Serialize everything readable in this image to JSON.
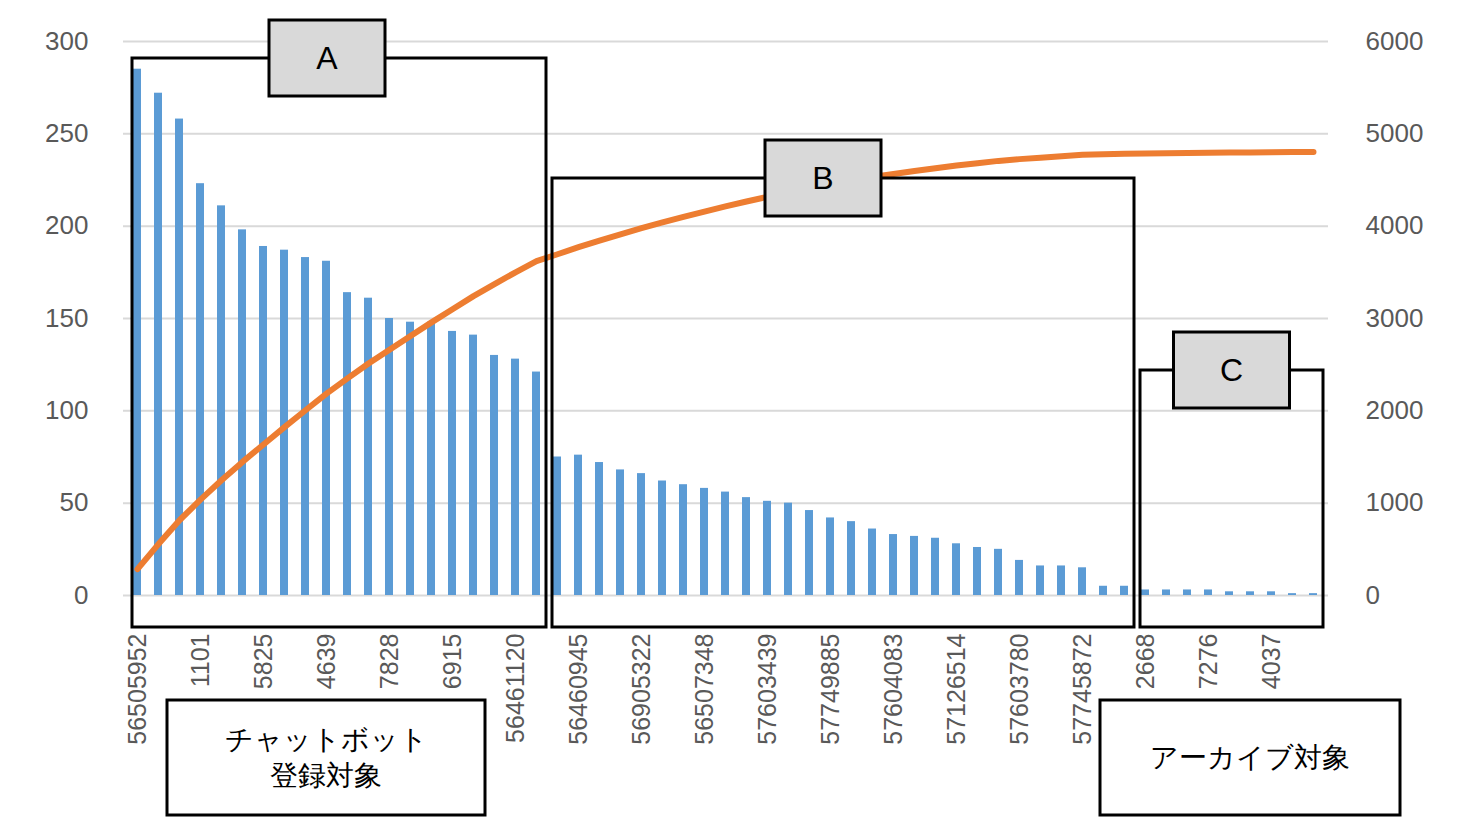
{
  "chart_data": {
    "type": "bar",
    "categories": [
      "56505952",
      null,
      null,
      "1101",
      null,
      null,
      "5825",
      null,
      null,
      "4639",
      null,
      null,
      "7828",
      null,
      null,
      "6915",
      null,
      null,
      "56461120",
      null,
      null,
      "56460945",
      null,
      null,
      "56905322",
      null,
      null,
      "56507348",
      null,
      null,
      "57603439",
      null,
      null,
      "57749885",
      null,
      null,
      "57604083",
      null,
      null,
      "57126514",
      null,
      null,
      "57603780",
      null,
      null,
      "57745872",
      null,
      null,
      "2668",
      null,
      null,
      "7276",
      null,
      null,
      "4037",
      null,
      null
    ],
    "series": [
      {
        "type": "bar",
        "color": "#5b9bd5",
        "values": [
          285,
          272,
          258,
          223,
          211,
          198,
          189,
          187,
          183,
          181,
          164,
          161,
          150,
          148,
          148,
          143,
          141,
          130,
          128,
          121,
          75,
          76,
          72,
          68,
          66,
          62,
          60,
          58,
          56,
          53,
          51,
          50,
          46,
          42,
          40,
          36,
          33,
          32,
          31,
          28,
          26,
          25,
          19,
          16,
          16,
          15,
          5,
          5,
          3,
          3,
          3,
          3,
          2,
          2,
          2,
          1,
          1
        ]
      },
      {
        "type": "line",
        "color": "#ed7d31",
        "axis": "y2",
        "values": [
          285,
          557,
          815,
          1038,
          1249,
          1447,
          1636,
          1823,
          2006,
          2187,
          2351,
          2512,
          2662,
          2810,
          2958,
          3101,
          3242,
          3372,
          3500,
          3621,
          3696,
          3772,
          3844,
          3912,
          3978,
          4040,
          4100,
          4158,
          4214,
          4267,
          4318,
          4368,
          4414,
          4456,
          4496,
          4532,
          4565,
          4597,
          4628,
          4656,
          4682,
          4707,
          4726,
          4742,
          4758,
          4773,
          4778,
          4783,
          4786,
          4789,
          4792,
          4795,
          4797,
          4799,
          4801,
          4802,
          4803
        ]
      }
    ],
    "ylim": [
      0,
      300
    ],
    "yticks": [
      0,
      50,
      100,
      150,
      200,
      250,
      300
    ],
    "y2lim": [
      0,
      6000
    ],
    "y2ticks": [
      0,
      1000,
      2000,
      3000,
      4000,
      5000,
      6000
    ],
    "grid": true,
    "groups": [
      {
        "label": "A",
        "note": "チャットボット\n登録対象"
      },
      {
        "label": "B"
      },
      {
        "label": "C",
        "note": "アーカイブ対象"
      }
    ]
  }
}
